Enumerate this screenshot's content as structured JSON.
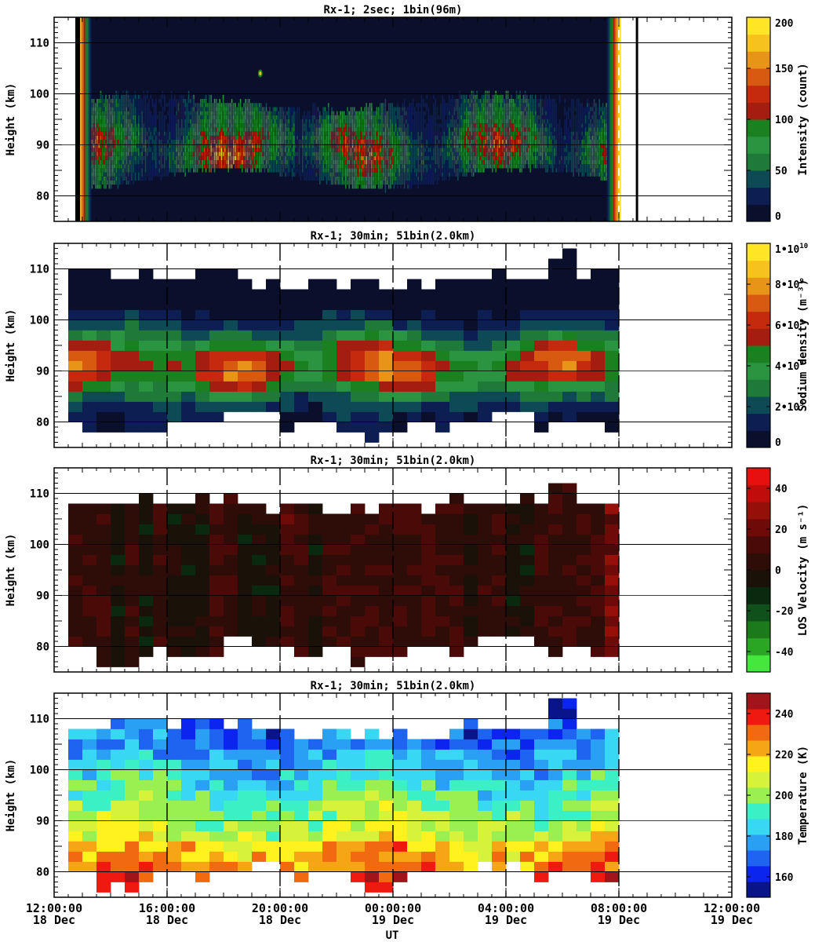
{
  "figure": {
    "xlabel": "UT"
  },
  "chart_data": [
    {
      "type": "heatmap",
      "title": "Rx-1;  2sec; 1bin(96m)",
      "xlabel": "UT",
      "ylabel": "Height (km)",
      "ylim": [
        75,
        115
      ],
      "yticks": [
        80,
        90,
        100,
        110
      ],
      "xlim_hours": [
        0,
        24
      ],
      "colorbar": {
        "label": "Intensity (count)",
        "range": [
          0,
          200
        ],
        "ticks": [
          "0",
          "50",
          "100",
          "150",
          "200"
        ],
        "colors": [
          "#0a0f2b",
          "#0d1f52",
          "#0e4a55",
          "#1f7a3a",
          "#2a9440",
          "#1a8020",
          "#a51c10",
          "#c62a0e",
          "#d85a10",
          "#e89418",
          "#f6c21e",
          "#ffe525"
        ]
      },
      "layer": {
        "start_hour": 1.1,
        "end_hour": 19.8,
        "peak_km": 89,
        "top_km": 98,
        "bottom_km": 83
      }
    },
    {
      "type": "heatmap",
      "title": "Rx-1; 30min; 51bin(2.0km)",
      "xlabel": "UT",
      "ylabel": "Height (km)",
      "ylim": [
        75,
        115
      ],
      "yticks": [
        80,
        90,
        100,
        110
      ],
      "xlim_hours": [
        0,
        24
      ],
      "colorbar": {
        "label": "Sodium density (m⁻³)",
        "range": [
          0,
          10000000000
        ],
        "ticks": [
          "0",
          "2•109",
          "4•109",
          "6•109",
          "8•109",
          "1•1010"
        ],
        "colors": [
          "#0a0f2b",
          "#0d1f52",
          "#0e4a55",
          "#1f7a3a",
          "#2a9440",
          "#1a8020",
          "#a51c10",
          "#c62a0e",
          "#d85a10",
          "#e89418",
          "#f6c21e",
          "#ffe525"
        ]
      },
      "layer": {
        "start_hour": 0.5,
        "end_hour": 20.0,
        "peak_km": 90,
        "top_km": 106,
        "bottom_km": 81
      }
    },
    {
      "type": "heatmap",
      "title": "Rx-1; 30min; 51bin(2.0km)",
      "xlabel": "UT",
      "ylabel": "Height (km)",
      "ylim": [
        75,
        115
      ],
      "yticks": [
        80,
        90,
        100,
        110
      ],
      "xlim_hours": [
        0,
        24
      ],
      "colorbar": {
        "label": "LOS Velocity (m s⁻¹)",
        "range": [
          -50,
          50
        ],
        "ticks": [
          "-40",
          "-20",
          "0",
          "20",
          "40"
        ],
        "colors": [
          "#44e83c",
          "#2aa624",
          "#1d7a1a",
          "#10501a",
          "#0a2a10",
          "#1a1208",
          "#2e0c08",
          "#4a0a08",
          "#6e0a08",
          "#941008",
          "#c00c0a",
          "#e61010"
        ]
      },
      "layer": {
        "start_hour": 0.5,
        "end_hour": 20.0,
        "top_km": 106,
        "bottom_km": 81
      }
    },
    {
      "type": "heatmap",
      "title": "Rx-1; 30min; 51bin(2.0km)",
      "xlabel": "UT",
      "ylabel": "Height (km)",
      "ylim": [
        75,
        115
      ],
      "yticks": [
        80,
        90,
        100,
        110
      ],
      "xlim_hours": [
        0,
        24
      ],
      "colorbar": {
        "label": "Temperature (K)",
        "range": [
          150,
          250
        ],
        "ticks": [
          "160",
          "180",
          "200",
          "220",
          "240"
        ],
        "colors": [
          "#0a148a",
          "#0b24ee",
          "#1e64f0",
          "#2aa0f4",
          "#38d8f2",
          "#3cf0c6",
          "#9af050",
          "#d6f23a",
          "#fff21e",
          "#f6a614",
          "#f26a10",
          "#ee1a10",
          "#a0141a"
        ]
      },
      "layer": {
        "start_hour": 0.5,
        "end_hour": 20.0,
        "top_km": 106,
        "bottom_km": 81
      }
    }
  ],
  "x_ticks": [
    {
      "time": "12:00:00",
      "date": "18 Dec"
    },
    {
      "time": "16:00:00",
      "date": "18 Dec"
    },
    {
      "time": "20:00:00",
      "date": "18 Dec"
    },
    {
      "time": "00:00:00",
      "date": "19 Dec"
    },
    {
      "time": "04:00:00",
      "date": "19 Dec"
    },
    {
      "time": "08:00:00",
      "date": "19 Dec"
    },
    {
      "time": "12:00:00",
      "date": "19 Dec"
    }
  ]
}
